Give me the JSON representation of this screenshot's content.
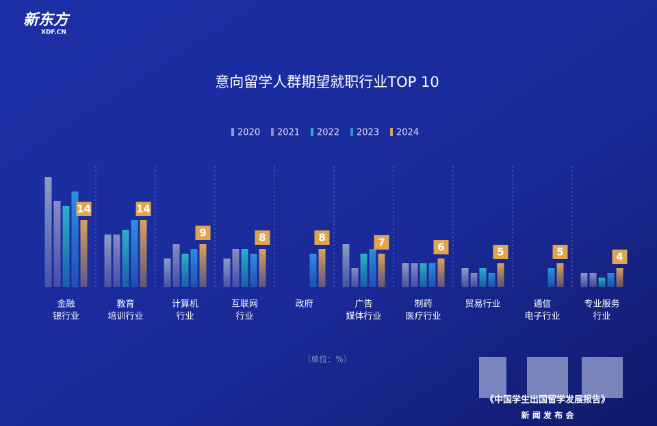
{
  "brand": {
    "name": "新东方",
    "site": "XDF.CN"
  },
  "chart_data": {
    "type": "bar",
    "title": "意向留学人群期望就职行业TOP 10",
    "categories": [
      [
        "金融",
        "银行业"
      ],
      [
        "教育",
        "培训行业"
      ],
      [
        "计算机",
        "行业"
      ],
      [
        "互联网",
        "行业"
      ],
      [
        "政府"
      ],
      [
        "广告",
        "媒体行业"
      ],
      [
        "制药",
        "医疗行业"
      ],
      [
        "贸易行业"
      ],
      [
        "通信",
        "电子行业"
      ],
      [
        "专业服务",
        "行业"
      ]
    ],
    "series": [
      {
        "name": "2020",
        "color": "#8f9cc6",
        "values": [
          23,
          11,
          6,
          6,
          null,
          9,
          5,
          4,
          null,
          3
        ]
      },
      {
        "name": "2021",
        "color": "#8a8cc4",
        "values": [
          18,
          11,
          9,
          8,
          null,
          4,
          5,
          3,
          null,
          3
        ]
      },
      {
        "name": "2022",
        "color": "#27b3c6",
        "values": [
          17,
          12,
          7,
          8,
          null,
          7,
          5,
          4,
          null,
          2
        ]
      },
      {
        "name": "2023",
        "color": "#2e8de0",
        "values": [
          20,
          14,
          8,
          7,
          7,
          8,
          5,
          3,
          4,
          3
        ]
      },
      {
        "name": "2024",
        "color": "#d9a256",
        "values": [
          14,
          14,
          9,
          8,
          8,
          7,
          6,
          5,
          5,
          4
        ]
      }
    ],
    "note": "（单位：%）"
  },
  "footer": {
    "report": "《中国学生出国留学发展报告》",
    "event": "新 闻 发 布 会"
  }
}
